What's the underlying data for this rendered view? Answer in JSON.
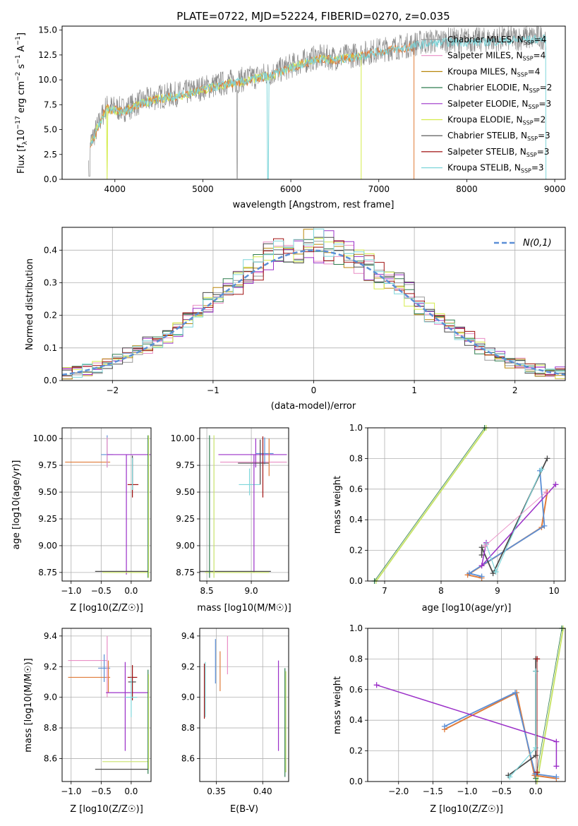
{
  "figure": {
    "title": "PLATE=0722, MJD=52224, FIBERID=0270, z=0.035"
  },
  "colors": {
    "Chabrier MILES": "#999999",
    "Salpeter MILES": "#e98ec5",
    "Kroupa MILES": "#b8860b",
    "Chabrier ELODIE": "#2e7d4f",
    "Salpeter ELODIE": "#9b30c8",
    "Kroupa ELODIE": "#d4ec4a",
    "Chabrier STELIB": "#4a4a4a",
    "Salpeter STELIB": "#a01010",
    "Kroupa STELIB": "#7ed6da",
    "gaussian": "#5b8fd6",
    "orange": "#e07b39",
    "blue": "#5b8fd6",
    "yellowgreen": "#c8e36a"
  },
  "chart_data": [
    {
      "id": "spectrum",
      "type": "line",
      "xlabel": "wavelength [Angstrom, rest frame]",
      "ylabel": "Flux [f_λ10^-17 erg cm^-2 s^-1 A^-1]",
      "xlim": [
        3400,
        9120
      ],
      "ylim": [
        0,
        15.4
      ],
      "xticks": [
        "4000",
        "5000",
        "6000",
        "7000",
        "8000",
        "9000"
      ],
      "yticks": [
        "0.0",
        "2.5",
        "5.0",
        "7.5",
        "10.0",
        "12.5",
        "15.0"
      ],
      "grid": false,
      "legend_position": "right",
      "legend": [
        "Chabrier MILES, N_SSP=4",
        "Salpeter MILES, N_SSP=4",
        "Kroupa MILES, N_SSP=4",
        "Chabrier ELODIE, N_SSP=2",
        "Salpeter ELODIE, N_SSP=3",
        "Kroupa ELODIE, N_SSP=2",
        "Chabrier STELIB, N_SSP=3",
        "Salpeter STELIB, N_SSP=3",
        "Kroupa STELIB, N_SSP=3"
      ],
      "data_trend": {
        "x": [
          3700,
          3900,
          4100,
          4300,
          4500,
          4800,
          5000,
          5300,
          5500,
          5800,
          6000,
          6300,
          6500,
          6800,
          7000,
          7300,
          7500,
          7800,
          8200,
          8600,
          8900
        ],
        "y": [
          3.2,
          7.3,
          7.0,
          7.8,
          8.3,
          8.7,
          9.2,
          9.8,
          10.1,
          10.7,
          11.4,
          12.3,
          12.2,
          12.6,
          13.0,
          13.4,
          13.8,
          14.0,
          14.0,
          14.2,
          14.3
        ]
      },
      "model_lines": {
        "Kroupa STELIB": {
          "x_end": 8900
        },
        "Kroupa MILES": {
          "x_end": 7400
        },
        "Kroupa ELODIE": {
          "x_end": 6800
        }
      }
    },
    {
      "id": "residuals",
      "type": "histogram",
      "xlabel": "(data-model)/error",
      "ylabel": "Normed distribution",
      "xlim": [
        -2.5,
        2.5
      ],
      "ylim": [
        0,
        0.47
      ],
      "xticks": [
        "−2",
        "−1",
        "0",
        "1",
        "2"
      ],
      "yticks": [
        "0.0",
        "0.1",
        "0.2",
        "0.3",
        "0.4"
      ],
      "grid": true,
      "legend": [
        "N(0,1)"
      ],
      "bin_width": 0.1
    },
    {
      "id": "age_vs_Z",
      "type": "scatter",
      "xlabel": "Z [log10(Z/Z☉)]",
      "ylabel": "age  [log10(age/yr)]",
      "xlim": [
        -1.15,
        0.33
      ],
      "ylim": [
        8.67,
        10.1
      ],
      "xticks": [
        "−1.0",
        "−0.5",
        "0.0"
      ],
      "yticks": [
        "8.75",
        "9.00",
        "9.25",
        "9.50",
        "9.75",
        "10.00"
      ],
      "grid": true
    },
    {
      "id": "age_vs_mass",
      "type": "scatter",
      "xlabel": "mass [log10(M/M☉)]",
      "ylabel": "",
      "xlim": [
        8.42,
        9.42
      ],
      "ylim": [
        8.67,
        10.1
      ],
      "xticks": [
        "8.5",
        "9.0"
      ],
      "yticks": [
        "8.75",
        "9.00",
        "9.25",
        "9.50",
        "9.75",
        "10.00"
      ],
      "grid": true
    },
    {
      "id": "weight_vs_age",
      "type": "line",
      "xlabel": "age  [log10(age/yr)]",
      "ylabel": "mass weight",
      "xlim": [
        6.7,
        10.2
      ],
      "ylim": [
        0,
        1
      ],
      "xticks": [
        "7",
        "8",
        "9",
        "10"
      ],
      "yticks": [
        "0.0",
        "0.2",
        "0.4",
        "0.6",
        "0.8",
        "1.0"
      ],
      "grid": true
    },
    {
      "id": "mass_vs_Z",
      "type": "scatter",
      "xlabel": "Z [log10(Z/Z☉)]",
      "ylabel": "mass [log10(M/M☉)]",
      "xlim": [
        -1.15,
        0.33
      ],
      "ylim": [
        8.45,
        9.45
      ],
      "xticks": [
        "−1.0",
        "−0.5",
        "0.0"
      ],
      "yticks": [
        "8.6",
        "8.8",
        "9.0",
        "9.2",
        "9.4"
      ],
      "grid": true
    },
    {
      "id": "mass_vs_ebv",
      "type": "scatter",
      "xlabel": "E(B-V)",
      "ylabel": "",
      "xlim": [
        0.332,
        0.428
      ],
      "ylim": [
        8.45,
        9.45
      ],
      "xticks": [
        "0.35",
        "0.40"
      ],
      "yticks": [
        "8.6",
        "8.8",
        "9.0",
        "9.2",
        "9.4"
      ],
      "grid": true
    },
    {
      "id": "weight_vs_Z",
      "type": "line",
      "xlabel": "Z [log10(Z/Z☉)]",
      "ylabel": "mass weight",
      "xlim": [
        -2.45,
        0.43
      ],
      "ylim": [
        0,
        1
      ],
      "xticks": [
        "−2.0",
        "−1.5",
        "−1.0",
        "−0.5",
        "0.0"
      ],
      "yticks": [
        "0.0",
        "0.2",
        "0.4",
        "0.6",
        "0.8",
        "1.0"
      ],
      "grid": true
    }
  ]
}
